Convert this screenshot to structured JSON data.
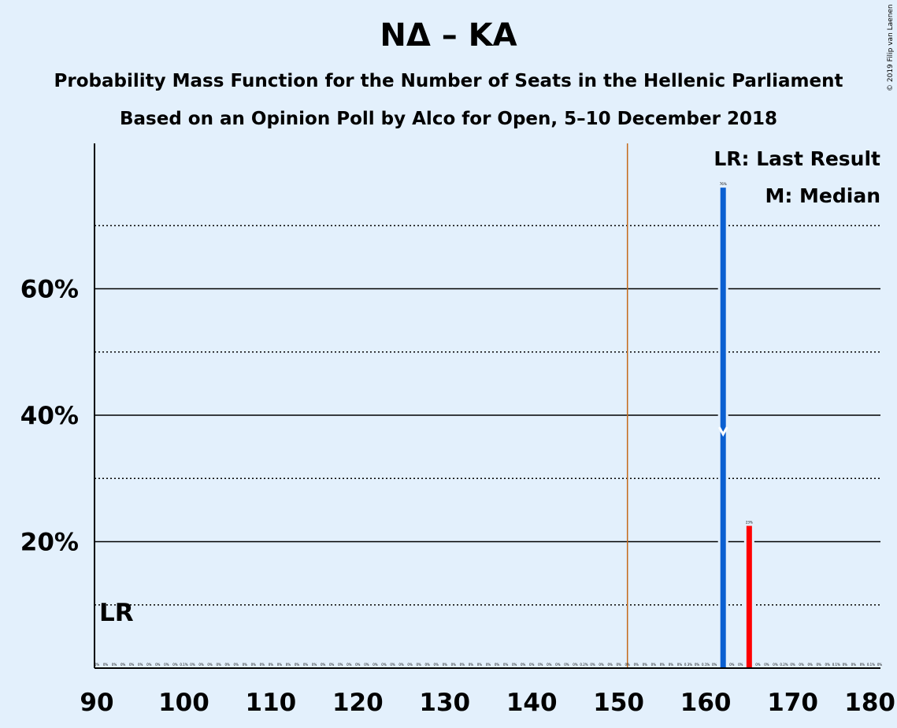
{
  "chart_data": {
    "type": "bar",
    "title": "ΝΔ – ΚΑ",
    "subtitle": "Probability Mass Function for the Number of Seats in the Hellenic Parliament",
    "subtitle2": "Based on an Opinion Poll by Alco for Open, 5–10 December 2018",
    "copyright": "© 2019 Filip van Laenen",
    "xlim": [
      90,
      180
    ],
    "ylim": [
      0,
      83
    ],
    "x_ticks": [
      {
        "value": 90,
        "label": "90"
      },
      {
        "value": 100,
        "label": "100"
      },
      {
        "value": 110,
        "label": "110"
      },
      {
        "value": 120,
        "label": "120"
      },
      {
        "value": 130,
        "label": "130"
      },
      {
        "value": 140,
        "label": "140"
      },
      {
        "value": 150,
        "label": "150"
      },
      {
        "value": 160,
        "label": "160"
      },
      {
        "value": 170,
        "label": "170"
      },
      {
        "value": 180,
        "label": "180"
      }
    ],
    "y_ticks": [
      {
        "value": 20,
        "label": "20%"
      },
      {
        "value": 40,
        "label": "40%"
      },
      {
        "value": 60,
        "label": "60%"
      }
    ],
    "minor_gridlines": [
      10,
      30,
      50,
      70
    ],
    "majority_line": 151,
    "last_result": {
      "seat": 90,
      "label": "LR"
    },
    "median": {
      "seat": 162,
      "marker": "M",
      "level": 37
    },
    "legend": {
      "lr": "LR: Last Result",
      "median": "M: Median"
    },
    "bars": [
      {
        "seat": 162,
        "value": 76,
        "label": "76%",
        "color": "#0a5fd1"
      },
      {
        "seat": 165,
        "value": 22.5,
        "label": "23%",
        "color": "#ff0000"
      }
    ],
    "small_values": [
      {
        "seat": 100,
        "label": "0.1%"
      },
      {
        "seat": 146,
        "label": "0.2%"
      },
      {
        "seat": 158,
        "label": "0.3%"
      },
      {
        "seat": 160,
        "label": "0.1%"
      },
      {
        "seat": 169,
        "label": "0.2%"
      },
      {
        "seat": 175,
        "label": "0.1%"
      },
      {
        "seat": 179,
        "label": "0.1%"
      }
    ],
    "zero_label": "0%",
    "colors": {
      "background": "#e3f0fc",
      "majority": "#c46a1a",
      "party": "#0a5fd1",
      "other": "#ff0000",
      "axis": "#000000"
    }
  }
}
